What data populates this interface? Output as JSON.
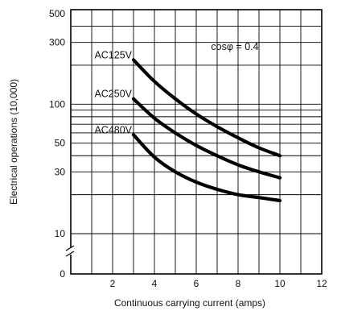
{
  "chart_data": {
    "type": "line",
    "title": "",
    "xlabel": "Continuous carrying current (amps)",
    "ylabel": "Electrical operations (10,000)",
    "xlim": [
      0,
      12
    ],
    "y_scale": "log",
    "ylim": [
      10,
      500
    ],
    "x_ticks": [
      "2",
      "4",
      "6",
      "8",
      "10",
      "12"
    ],
    "y_ticks": [
      "500",
      "300",
      "100",
      "50",
      "30",
      "10",
      "0"
    ],
    "y_axis_break": true,
    "grid": true,
    "annotation": "cosφ = 0.4",
    "series": [
      {
        "name": "AC125V",
        "x": [
          3,
          4,
          5,
          6,
          7,
          8,
          9,
          10
        ],
        "y": [
          220,
          150,
          110,
          84,
          67,
          55,
          46,
          40
        ]
      },
      {
        "name": "AC250V",
        "x": [
          3,
          4,
          5,
          6,
          7,
          8,
          9,
          10
        ],
        "y": [
          110,
          78,
          60,
          48,
          40,
          34,
          30,
          27
        ]
      },
      {
        "name": "AC480V",
        "x": [
          3,
          4,
          5,
          6,
          7,
          8,
          9,
          10
        ],
        "y": [
          58,
          39,
          30,
          25,
          22,
          20,
          19,
          18
        ]
      }
    ]
  }
}
